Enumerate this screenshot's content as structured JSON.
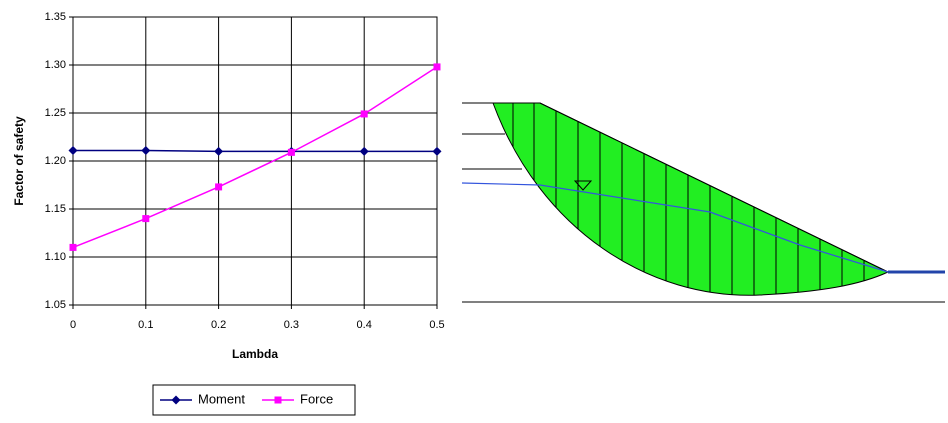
{
  "chart_data": {
    "type": "line",
    "xlabel": "Lambda",
    "ylabel": "Factor of safety",
    "x": [
      0,
      0.1,
      0.2,
      0.3,
      0.4,
      0.5
    ],
    "series": [
      {
        "name": "Moment",
        "color": "#000080",
        "marker": "diamond",
        "values": [
          1.211,
          1.211,
          1.21,
          1.21,
          1.21,
          1.21
        ]
      },
      {
        "name": "Force",
        "color": "#ff00ff",
        "marker": "square",
        "values": [
          1.11,
          1.14,
          1.173,
          1.209,
          1.249,
          1.298
        ]
      }
    ],
    "xlim": [
      0,
      0.5
    ],
    "xticks": [
      0,
      0.1,
      0.2,
      0.3,
      0.4,
      0.5
    ],
    "ylim": [
      1.05,
      1.35
    ],
    "yticks": [
      1.05,
      {
        "value": 1.1,
        "label": "1.10"
      },
      1.15,
      {
        "value": 1.2,
        "label": "1.20"
      },
      1.25,
      {
        "value": 1.3,
        "label": "1.30"
      },
      1.35
    ],
    "grid": true,
    "legend": "bottom"
  }
}
